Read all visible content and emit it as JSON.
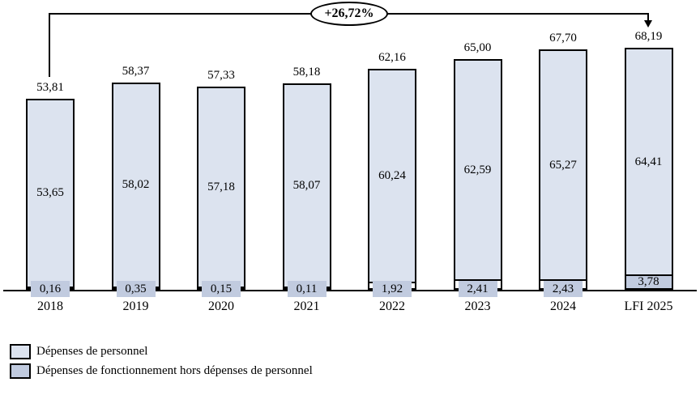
{
  "chart_data": {
    "type": "bar",
    "stacked": true,
    "title": "",
    "xlabel": "",
    "ylabel": "",
    "categories": [
      "2018",
      "2019",
      "2020",
      "2021",
      "2022",
      "2023",
      "2024",
      "LFI 2025"
    ],
    "series": [
      {
        "name": "Dépenses de personnel",
        "color": "#dce3ef",
        "values": [
          53.65,
          58.02,
          57.18,
          58.07,
          60.24,
          62.59,
          65.27,
          64.41
        ],
        "labels": [
          "53,65",
          "58,02",
          "57,18",
          "58,07",
          "60,24",
          "62,59",
          "65,27",
          "64,41"
        ]
      },
      {
        "name": "Dépenses de fonctionnement hors dépenses de personnel",
        "color": "#c1cbdf",
        "values": [
          0.16,
          0.35,
          0.15,
          0.11,
          1.92,
          2.41,
          2.43,
          3.78
        ],
        "labels": [
          "0,16",
          "0,35",
          "0,15",
          "0,11",
          "1,92",
          "2,41",
          "2,43",
          "3,78"
        ]
      }
    ],
    "totals": {
      "values": [
        53.81,
        58.37,
        57.33,
        58.18,
        62.16,
        65.0,
        67.7,
        68.19
      ],
      "labels": [
        "53,81",
        "58,37",
        "57,33",
        "58,18",
        "62,16",
        "65,00",
        "67,70",
        "68,19"
      ]
    },
    "annotation": {
      "label": "+26,72%",
      "from_category": "2018",
      "to_category": "LFI 2025"
    },
    "ylim": [
      0,
      80
    ],
    "grid": false,
    "legend_position": "bottom-left"
  },
  "legend": {
    "items": [
      {
        "label": "Dépenses de personnel",
        "color": "#dce3ef"
      },
      {
        "label": "Dépenses de fonctionnement hors dépenses de personnel",
        "color": "#c1cbdf"
      }
    ]
  },
  "colors": {
    "bar_border": "#000000",
    "personnel_fill": "#dce3ef",
    "fonctionnement_fill": "#c1cbdf",
    "value_label_bg": "#c1cbdf",
    "annotation_line": "#000000"
  }
}
